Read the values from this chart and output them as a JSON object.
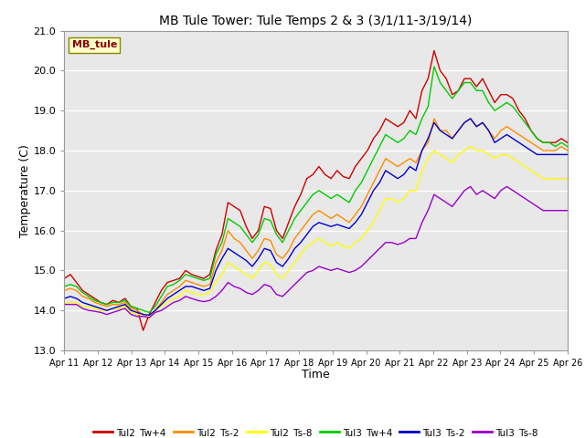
{
  "title": "MB Tule Tower: Tule Temps 2 & 3 (3/1/11-3/19/14)",
  "xlabel": "Time",
  "ylabel": "Temperature (C)",
  "xlim": [
    0,
    15
  ],
  "ylim": [
    13.0,
    21.0
  ],
  "yticks": [
    13.0,
    14.0,
    15.0,
    16.0,
    17.0,
    18.0,
    19.0,
    20.0,
    21.0
  ],
  "xtick_labels": [
    "Apr 11",
    "Apr 12",
    "Apr 13",
    "Apr 14",
    "Apr 15",
    "Apr 16",
    "Apr 17",
    "Apr 18",
    "Apr 19",
    "Apr 20",
    "Apr 21",
    "Apr 22",
    "Apr 23",
    "Apr 24",
    "Apr 25",
    "Apr 26"
  ],
  "bg_color": "#e8e8e8",
  "grid_color": "#ffffff",
  "legend_label": "MB_tule",
  "series": [
    {
      "name": "Tul2_Tw+4",
      "color": "#cc0000",
      "lw": 1.0,
      "y": [
        14.8,
        14.9,
        14.7,
        14.5,
        14.4,
        14.3,
        14.2,
        14.15,
        14.25,
        14.2,
        14.3,
        14.1,
        14.05,
        13.5,
        13.9,
        14.2,
        14.5,
        14.7,
        14.75,
        14.8,
        15.0,
        14.9,
        14.85,
        14.8,
        14.9,
        15.5,
        15.9,
        16.7,
        16.6,
        16.5,
        16.1,
        15.8,
        16.0,
        16.6,
        16.55,
        16.0,
        15.8,
        16.2,
        16.6,
        16.9,
        17.3,
        17.4,
        17.6,
        17.4,
        17.3,
        17.5,
        17.35,
        17.3,
        17.6,
        17.8,
        18.0,
        18.3,
        18.5,
        18.8,
        18.7,
        18.6,
        18.7,
        19.0,
        18.8,
        19.5,
        19.8,
        20.5,
        20.0,
        19.8,
        19.4,
        19.5,
        19.8,
        19.8,
        19.6,
        19.8,
        19.5,
        19.2,
        19.4,
        19.4,
        19.3,
        19.0,
        18.8,
        18.5,
        18.3,
        18.2,
        18.2,
        18.2,
        18.3,
        18.2
      ]
    },
    {
      "name": "Tul2_Ts-2",
      "color": "#ff8c00",
      "lw": 1.0,
      "y": [
        14.5,
        14.55,
        14.5,
        14.35,
        14.3,
        14.2,
        14.15,
        14.1,
        14.15,
        14.15,
        14.2,
        14.05,
        14.0,
        13.9,
        13.85,
        14.0,
        14.2,
        14.4,
        14.5,
        14.6,
        14.75,
        14.7,
        14.65,
        14.6,
        14.65,
        15.2,
        15.5,
        16.0,
        15.8,
        15.7,
        15.5,
        15.3,
        15.5,
        15.8,
        15.75,
        15.4,
        15.3,
        15.5,
        15.8,
        16.0,
        16.2,
        16.4,
        16.5,
        16.4,
        16.3,
        16.4,
        16.3,
        16.2,
        16.4,
        16.6,
        16.9,
        17.2,
        17.5,
        17.8,
        17.7,
        17.6,
        17.7,
        17.8,
        17.7,
        18.0,
        18.2,
        18.8,
        18.5,
        18.5,
        18.3,
        18.5,
        18.7,
        18.8,
        18.6,
        18.7,
        18.5,
        18.3,
        18.5,
        18.6,
        18.5,
        18.4,
        18.3,
        18.2,
        18.1,
        18.0,
        18.0,
        18.0,
        18.1,
        18.0
      ]
    },
    {
      "name": "Tul2_Ts-8",
      "color": "#ffff00",
      "lw": 1.0,
      "y": [
        14.2,
        14.2,
        14.2,
        14.1,
        14.1,
        14.05,
        14.0,
        14.0,
        14.05,
        14.05,
        14.1,
        13.95,
        13.9,
        13.9,
        13.85,
        14.0,
        14.1,
        14.2,
        14.3,
        14.35,
        14.5,
        14.45,
        14.4,
        14.4,
        14.45,
        14.7,
        14.9,
        15.2,
        15.1,
        15.0,
        14.9,
        14.8,
        15.0,
        15.2,
        15.15,
        14.9,
        14.8,
        15.0,
        15.2,
        15.4,
        15.6,
        15.7,
        15.8,
        15.7,
        15.6,
        15.7,
        15.6,
        15.55,
        15.7,
        15.8,
        16.0,
        16.2,
        16.5,
        16.8,
        16.8,
        16.7,
        16.8,
        17.0,
        17.0,
        17.5,
        17.8,
        18.0,
        17.9,
        17.8,
        17.7,
        17.9,
        18.0,
        18.1,
        18.0,
        18.0,
        17.9,
        17.8,
        17.9,
        17.9,
        17.8,
        17.7,
        17.6,
        17.5,
        17.4,
        17.3,
        17.3,
        17.3,
        17.3,
        17.3
      ]
    },
    {
      "name": "Tul3_Tw+4",
      "color": "#00cc00",
      "lw": 1.0,
      "y": [
        14.6,
        14.65,
        14.6,
        14.45,
        14.35,
        14.25,
        14.2,
        14.15,
        14.2,
        14.2,
        14.25,
        14.1,
        14.05,
        14.0,
        13.95,
        14.1,
        14.35,
        14.6,
        14.65,
        14.75,
        14.9,
        14.85,
        14.8,
        14.75,
        14.8,
        15.4,
        15.7,
        16.3,
        16.2,
        16.1,
        15.9,
        15.7,
        15.9,
        16.3,
        16.25,
        15.9,
        15.7,
        16.0,
        16.3,
        16.5,
        16.7,
        16.9,
        17.0,
        16.9,
        16.8,
        16.9,
        16.8,
        16.7,
        17.0,
        17.2,
        17.5,
        17.8,
        18.1,
        18.4,
        18.3,
        18.2,
        18.3,
        18.5,
        18.4,
        18.8,
        19.1,
        20.1,
        19.7,
        19.5,
        19.3,
        19.5,
        19.7,
        19.7,
        19.5,
        19.5,
        19.2,
        19.0,
        19.1,
        19.2,
        19.1,
        18.9,
        18.7,
        18.5,
        18.3,
        18.2,
        18.2,
        18.1,
        18.2,
        18.1
      ]
    },
    {
      "name": "Tul3_Ts-2",
      "color": "#0000cc",
      "lw": 1.0,
      "y": [
        14.3,
        14.35,
        14.3,
        14.2,
        14.15,
        14.1,
        14.05,
        14.0,
        14.05,
        14.1,
        14.15,
        14.0,
        13.95,
        13.9,
        13.88,
        14.0,
        14.15,
        14.3,
        14.4,
        14.5,
        14.6,
        14.6,
        14.55,
        14.5,
        14.55,
        15.0,
        15.3,
        15.55,
        15.45,
        15.35,
        15.25,
        15.1,
        15.3,
        15.55,
        15.5,
        15.2,
        15.1,
        15.3,
        15.55,
        15.7,
        15.9,
        16.1,
        16.2,
        16.15,
        16.1,
        16.15,
        16.1,
        16.05,
        16.2,
        16.4,
        16.7,
        17.0,
        17.2,
        17.5,
        17.4,
        17.3,
        17.4,
        17.6,
        17.5,
        18.0,
        18.3,
        18.7,
        18.5,
        18.4,
        18.3,
        18.5,
        18.7,
        18.8,
        18.6,
        18.7,
        18.5,
        18.2,
        18.3,
        18.4,
        18.3,
        18.2,
        18.1,
        18.0,
        17.9,
        17.9,
        17.9,
        17.9,
        17.9,
        17.9
      ]
    },
    {
      "name": "Tul3_Ts-8",
      "color": "#9900cc",
      "lw": 1.0,
      "y": [
        14.15,
        14.15,
        14.15,
        14.05,
        14.0,
        13.98,
        13.95,
        13.9,
        13.95,
        14.0,
        14.05,
        13.9,
        13.85,
        13.85,
        13.82,
        13.95,
        14.0,
        14.1,
        14.2,
        14.25,
        14.35,
        14.3,
        14.25,
        14.22,
        14.25,
        14.35,
        14.5,
        14.7,
        14.6,
        14.55,
        14.45,
        14.4,
        14.5,
        14.65,
        14.6,
        14.4,
        14.35,
        14.5,
        14.65,
        14.8,
        14.95,
        15.0,
        15.1,
        15.05,
        15.0,
        15.05,
        15.0,
        14.95,
        15.0,
        15.1,
        15.25,
        15.4,
        15.55,
        15.7,
        15.7,
        15.65,
        15.7,
        15.8,
        15.8,
        16.2,
        16.5,
        16.9,
        16.8,
        16.7,
        16.6,
        16.8,
        17.0,
        17.1,
        16.9,
        17.0,
        16.9,
        16.8,
        17.0,
        17.1,
        17.0,
        16.9,
        16.8,
        16.7,
        16.6,
        16.5,
        16.5,
        16.5,
        16.5,
        16.5
      ]
    }
  ]
}
